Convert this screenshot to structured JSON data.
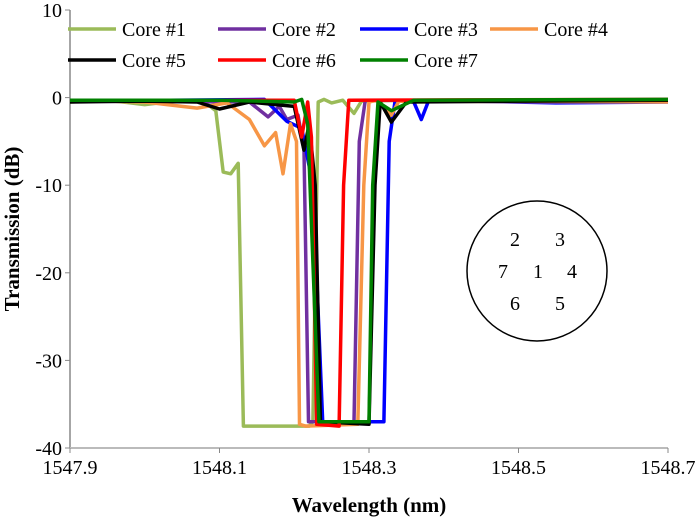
{
  "chart_data": {
    "type": "line",
    "title": "",
    "xlabel": "Wavelength (nm)",
    "ylabel": "Transmission (dB)",
    "xlim": [
      1547.9,
      1548.7
    ],
    "ylim": [
      -40,
      10
    ],
    "xticks": [
      1547.9,
      1548.1,
      1548.3,
      1548.5,
      1548.7
    ],
    "xtick_labels": [
      "1547.9",
      "1548.1",
      "1548.3",
      "1548.5",
      "1548.7"
    ],
    "yticks": [
      -40,
      -30,
      -20,
      -10,
      0,
      10
    ],
    "ytick_labels": [
      "-40",
      "-30",
      "-20",
      "-10",
      "0",
      "10"
    ],
    "grid": false,
    "legend_position": "top",
    "series": [
      {
        "name": "Core #1",
        "color": "#9BBB59",
        "points": [
          [
            1547.9,
            -0.5
          ],
          [
            1547.95,
            -0.3
          ],
          [
            1548.0,
            -0.8
          ],
          [
            1548.04,
            -0.4
          ],
          [
            1548.08,
            -0.5
          ],
          [
            1548.095,
            -1.5
          ],
          [
            1548.105,
            -8.5
          ],
          [
            1548.115,
            -8.7
          ],
          [
            1548.125,
            -7.5
          ],
          [
            1548.132,
            -37.5
          ],
          [
            1548.145,
            -37.5
          ],
          [
            1548.22,
            -37.5
          ],
          [
            1548.225,
            -37
          ],
          [
            1548.232,
            -0.5
          ],
          [
            1548.24,
            -0.2
          ],
          [
            1548.25,
            -0.6
          ],
          [
            1548.265,
            -0.3
          ],
          [
            1548.28,
            -1.8
          ],
          [
            1548.29,
            -0.4
          ],
          [
            1548.35,
            -0.3
          ],
          [
            1548.5,
            -0.4
          ],
          [
            1548.7,
            -0.3
          ]
        ]
      },
      {
        "name": "Core #2",
        "color": "#7030A0",
        "points": [
          [
            1547.9,
            -0.4
          ],
          [
            1548.14,
            -0.5
          ],
          [
            1548.165,
            -2.2
          ],
          [
            1548.18,
            -1
          ],
          [
            1548.19,
            -2.5
          ],
          [
            1548.205,
            -2
          ],
          [
            1548.213,
            -6
          ],
          [
            1548.219,
            -37
          ],
          [
            1548.28,
            -37
          ],
          [
            1548.287,
            -5
          ],
          [
            1548.295,
            -0.3
          ],
          [
            1548.7,
            -0.4
          ]
        ]
      },
      {
        "name": "Core #3",
        "color": "#0000FF",
        "points": [
          [
            1547.9,
            -0.4
          ],
          [
            1548.16,
            -0.2
          ],
          [
            1548.19,
            -2.7
          ],
          [
            1548.21,
            -3.5
          ],
          [
            1548.225,
            -10
          ],
          [
            1548.238,
            -37
          ],
          [
            1548.32,
            -37
          ],
          [
            1548.327,
            -5
          ],
          [
            1548.335,
            -0.3
          ],
          [
            1548.36,
            -0.5
          ],
          [
            1548.37,
            -2.5
          ],
          [
            1548.38,
            -0.3
          ],
          [
            1548.55,
            -0.6
          ],
          [
            1548.7,
            -0.5
          ]
        ]
      },
      {
        "name": "Core #4",
        "color": "#F79646",
        "points": [
          [
            1547.9,
            -0.3
          ],
          [
            1548.0,
            -0.5
          ],
          [
            1548.07,
            -1.2
          ],
          [
            1548.11,
            -0.6
          ],
          [
            1548.14,
            -2.5
          ],
          [
            1548.16,
            -5.5
          ],
          [
            1548.175,
            -4
          ],
          [
            1548.185,
            -8.7
          ],
          [
            1548.195,
            -3
          ],
          [
            1548.203,
            -5
          ],
          [
            1548.207,
            -37.3
          ],
          [
            1548.215,
            -37.5
          ],
          [
            1548.285,
            -37.3
          ],
          [
            1548.293,
            -10
          ],
          [
            1548.3,
            -0.5
          ],
          [
            1548.31,
            -0.3
          ],
          [
            1548.33,
            -2
          ],
          [
            1548.34,
            -0.4
          ],
          [
            1548.7,
            -0.5
          ]
        ]
      },
      {
        "name": "Core #5",
        "color": "#000000",
        "points": [
          [
            1547.9,
            -0.5
          ],
          [
            1548.0,
            -0.4
          ],
          [
            1548.07,
            -0.5
          ],
          [
            1548.1,
            -1.3
          ],
          [
            1548.14,
            -0.5
          ],
          [
            1548.2,
            -1
          ],
          [
            1548.213,
            -6
          ],
          [
            1548.22,
            -3
          ],
          [
            1548.228,
            -10
          ],
          [
            1548.235,
            -37
          ],
          [
            1548.3,
            -37.3
          ],
          [
            1548.308,
            -10
          ],
          [
            1548.315,
            -0.5
          ],
          [
            1548.33,
            -2.8
          ],
          [
            1548.35,
            -0.5
          ],
          [
            1548.7,
            -0.3
          ]
        ]
      },
      {
        "name": "Core #6",
        "color": "#FF0000",
        "points": [
          [
            1547.9,
            -0.3
          ],
          [
            1548.2,
            -0.3
          ],
          [
            1548.21,
            -4.5
          ],
          [
            1548.218,
            -0.5
          ],
          [
            1548.223,
            -4.5
          ],
          [
            1548.23,
            -37.3
          ],
          [
            1548.26,
            -37.5
          ],
          [
            1548.266,
            -10
          ],
          [
            1548.273,
            -0.3
          ],
          [
            1548.7,
            -0.2
          ]
        ]
      },
      {
        "name": "Core #7",
        "color": "#008000",
        "points": [
          [
            1547.9,
            -0.3
          ],
          [
            1548.1,
            -0.3
          ],
          [
            1548.2,
            -0.5
          ],
          [
            1548.21,
            -0.2
          ],
          [
            1548.218,
            -3
          ],
          [
            1548.233,
            -37
          ],
          [
            1548.3,
            -37
          ],
          [
            1548.305,
            -10
          ],
          [
            1548.312,
            -0.5
          ],
          [
            1548.33,
            -1.5
          ],
          [
            1548.36,
            -0.3
          ],
          [
            1548.7,
            -0.2
          ]
        ]
      }
    ],
    "inset": {
      "description_labels": [
        "2",
        "3",
        "7",
        "1",
        "4",
        "6",
        "5"
      ]
    }
  }
}
